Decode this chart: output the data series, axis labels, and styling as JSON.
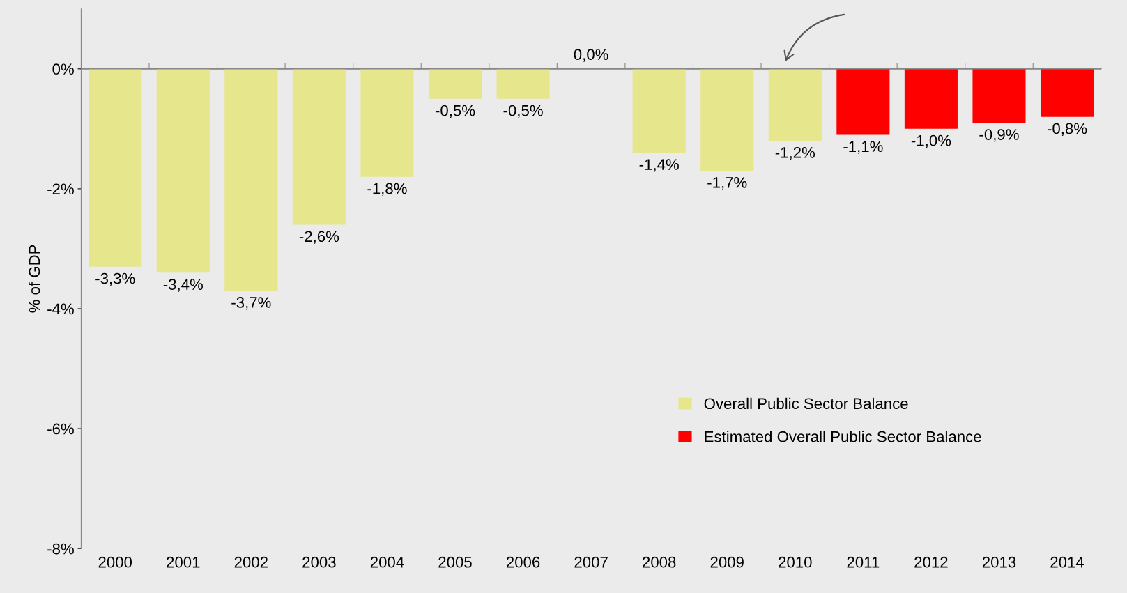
{
  "chart_data": {
    "type": "bar",
    "ylabel": "% of GDP",
    "categories": [
      "2000",
      "2001",
      "2002",
      "2003",
      "2004",
      "2005",
      "2006",
      "2007",
      "2008",
      "2009",
      "2010",
      "2011",
      "2012",
      "2013",
      "2014"
    ],
    "series": [
      {
        "name": "Overall Public Sector Balance",
        "color": "#e6e68c",
        "values": [
          -3.3,
          -3.4,
          -3.7,
          -2.6,
          -1.8,
          -0.5,
          -0.5,
          0.0,
          -1.4,
          -1.7,
          -1.2,
          null,
          null,
          null,
          null
        ],
        "value_labels": [
          "-3,3%",
          "-3,4%",
          "-3,7%",
          "-2,6%",
          "-1,8%",
          "-0,5%",
          "-0,5%",
          "0,0%",
          "-1,4%",
          "-1,7%",
          "-1,2%",
          null,
          null,
          null,
          null
        ]
      },
      {
        "name": "Estimated Overall Public Sector Balance",
        "color": "#ff0000",
        "values": [
          null,
          null,
          null,
          null,
          null,
          null,
          null,
          null,
          null,
          null,
          null,
          -1.1,
          -1.0,
          -0.9,
          -0.8
        ],
        "value_labels": [
          null,
          null,
          null,
          null,
          null,
          null,
          null,
          null,
          null,
          null,
          null,
          "-1,1%",
          "-1,0%",
          "-0,9%",
          "-0,8%"
        ]
      }
    ],
    "ylim": [
      -8,
      1
    ],
    "yticks": [
      {
        "value": -8,
        "label": "-8%"
      },
      {
        "value": -6,
        "label": "-6%"
      },
      {
        "value": -4,
        "label": "-4%"
      },
      {
        "value": -2,
        "label": "-2%"
      },
      {
        "value": 0,
        "label": "0%"
      }
    ],
    "ref_lines": [
      {
        "axis": "y",
        "value": 0,
        "color": "#888888"
      }
    ],
    "grid": false,
    "legend": "bottom right"
  }
}
